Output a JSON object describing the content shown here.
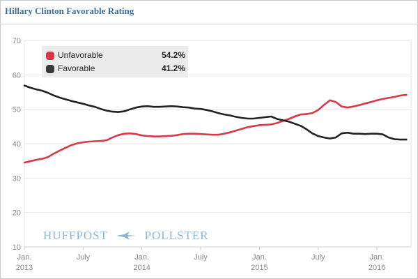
{
  "title": "Hillary Clinton Favorable Rating",
  "watermark": {
    "left_word": "HUFFPOST",
    "right_word": "POLLSTER"
  },
  "colors": {
    "unfavorable": "#d73a45",
    "favorable": "#222222",
    "title": "#3a6fa0",
    "grid": "#e6e6e6",
    "axis_text": "#888888"
  },
  "legend": [
    {
      "label": "Unfavorable",
      "value": "54.2%",
      "color": "#d73a45"
    },
    {
      "label": "Favorable",
      "value": "41.2%",
      "color": "#3a3a3a"
    }
  ],
  "chart_data": {
    "type": "line",
    "title": "Hillary Clinton Favorable Rating",
    "xlabel": "",
    "ylabel": "",
    "ylim": [
      10,
      70
    ],
    "yticks": [
      10,
      20,
      30,
      40,
      50,
      60,
      70
    ],
    "xlim": [
      2013.0,
      2016.29
    ],
    "xticks": [
      {
        "x": 2013.0,
        "line1": "Jan.",
        "line2": "2013"
      },
      {
        "x": 2013.5,
        "line1": "July",
        "line2": ""
      },
      {
        "x": 2014.0,
        "line1": "Jan.",
        "line2": "2014"
      },
      {
        "x": 2014.5,
        "line1": "July",
        "line2": ""
      },
      {
        "x": 2015.0,
        "line1": "Jan.",
        "line2": "2015"
      },
      {
        "x": 2015.5,
        "line1": "July",
        "line2": ""
      },
      {
        "x": 2016.0,
        "line1": "Jan.",
        "line2": "2016"
      }
    ],
    "grid": true,
    "series": [
      {
        "name": "Unfavorable",
        "color": "#d73a45",
        "x": [
          2013.0,
          2013.05,
          2013.1,
          2013.15,
          2013.2,
          2013.25,
          2013.3,
          2013.35,
          2013.4,
          2013.45,
          2013.5,
          2013.55,
          2013.6,
          2013.65,
          2013.7,
          2013.75,
          2013.8,
          2013.85,
          2013.9,
          2013.95,
          2014.0,
          2014.05,
          2014.1,
          2014.15,
          2014.2,
          2014.25,
          2014.3,
          2014.35,
          2014.4,
          2014.45,
          2014.5,
          2014.55,
          2014.6,
          2014.65,
          2014.7,
          2014.75,
          2014.8,
          2014.85,
          2014.9,
          2014.95,
          2015.0,
          2015.05,
          2015.1,
          2015.15,
          2015.2,
          2015.25,
          2015.3,
          2015.35,
          2015.4,
          2015.45,
          2015.5,
          2015.55,
          2015.6,
          2015.65,
          2015.7,
          2015.75,
          2015.8,
          2015.85,
          2015.9,
          2015.95,
          2016.0,
          2016.05,
          2016.1,
          2016.15,
          2016.2,
          2016.25
        ],
        "values": [
          34.5,
          34.9,
          35.3,
          35.6,
          36.1,
          37.1,
          38.0,
          38.8,
          39.6,
          40.1,
          40.4,
          40.6,
          40.7,
          40.8,
          41.0,
          41.8,
          42.5,
          42.9,
          43.0,
          42.8,
          42.4,
          42.2,
          42.1,
          42.1,
          42.2,
          42.3,
          42.5,
          42.8,
          42.9,
          42.9,
          42.8,
          42.7,
          42.6,
          42.6,
          42.9,
          43.3,
          43.8,
          44.3,
          44.8,
          45.1,
          45.4,
          45.5,
          45.6,
          46.0,
          46.6,
          47.2,
          47.9,
          48.5,
          48.6,
          48.9,
          49.8,
          51.3,
          52.6,
          52.1,
          50.8,
          50.5,
          50.8,
          51.2,
          51.7,
          52.1,
          52.6,
          53.0,
          53.3,
          53.6,
          54.0,
          54.2
        ]
      },
      {
        "name": "Favorable",
        "color": "#222222",
        "x": [
          2013.0,
          2013.05,
          2013.1,
          2013.15,
          2013.2,
          2013.25,
          2013.3,
          2013.35,
          2013.4,
          2013.45,
          2013.5,
          2013.55,
          2013.6,
          2013.65,
          2013.7,
          2013.75,
          2013.8,
          2013.85,
          2013.9,
          2013.95,
          2014.0,
          2014.05,
          2014.1,
          2014.15,
          2014.2,
          2014.25,
          2014.3,
          2014.35,
          2014.4,
          2014.45,
          2014.5,
          2014.55,
          2014.6,
          2014.65,
          2014.7,
          2014.75,
          2014.8,
          2014.85,
          2014.9,
          2014.95,
          2015.0,
          2015.05,
          2015.1,
          2015.15,
          2015.2,
          2015.25,
          2015.3,
          2015.35,
          2015.4,
          2015.45,
          2015.5,
          2015.55,
          2015.6,
          2015.65,
          2015.7,
          2015.75,
          2015.8,
          2015.85,
          2015.9,
          2015.95,
          2016.0,
          2016.05,
          2016.1,
          2016.15,
          2016.2,
          2016.25
        ],
        "values": [
          56.9,
          56.3,
          55.8,
          55.4,
          54.8,
          54.0,
          53.4,
          52.9,
          52.4,
          52.0,
          51.6,
          51.1,
          50.7,
          50.1,
          49.6,
          49.3,
          49.2,
          49.4,
          50.0,
          50.5,
          50.8,
          50.9,
          50.7,
          50.7,
          50.8,
          50.9,
          50.8,
          50.6,
          50.5,
          50.2,
          50.1,
          49.8,
          49.4,
          48.9,
          48.5,
          48.2,
          47.8,
          47.5,
          47.3,
          47.3,
          47.5,
          47.7,
          47.9,
          47.2,
          46.8,
          46.4,
          45.8,
          45.2,
          44.2,
          43.0,
          42.2,
          41.8,
          41.5,
          41.8,
          43.0,
          43.2,
          42.9,
          42.9,
          42.8,
          42.9,
          42.9,
          42.7,
          41.8,
          41.3,
          41.2,
          41.2
        ]
      }
    ]
  }
}
